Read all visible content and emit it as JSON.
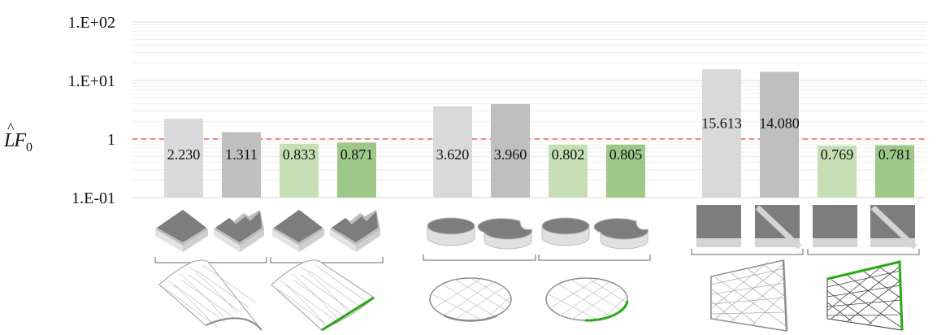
{
  "chart_data": {
    "type": "bar",
    "title": "",
    "xlabel": "",
    "ylabel": "L̂F0",
    "yscale": "log",
    "ylim": [
      0.1,
      100
    ],
    "yticks": [
      "1.E-01",
      "1",
      "1.E+01",
      "1.E+02"
    ],
    "grid": true,
    "reference_line": {
      "value": 1,
      "style": "dashed",
      "color": "#f0614c"
    },
    "groups": [
      {
        "shape": "curved-surface",
        "values": [
          2.23,
          1.311,
          0.833,
          0.871
        ],
        "labels": [
          "2.230",
          "1.311",
          "0.833",
          "0.871"
        ]
      },
      {
        "shape": "disc",
        "values": [
          3.62,
          3.96,
          0.802,
          0.805
        ],
        "labels": [
          "3.620",
          "3.960",
          "0.802",
          "0.805"
        ]
      },
      {
        "shape": "trapezoid",
        "values": [
          15.613,
          14.08,
          0.769,
          0.781
        ],
        "labels": [
          "15.613",
          "14.080",
          "0.769",
          "0.781"
        ]
      }
    ],
    "bar_colors": [
      "#d9d9d9",
      "#bfbfbf",
      "#c5deb4",
      "#9dc888"
    ]
  }
}
